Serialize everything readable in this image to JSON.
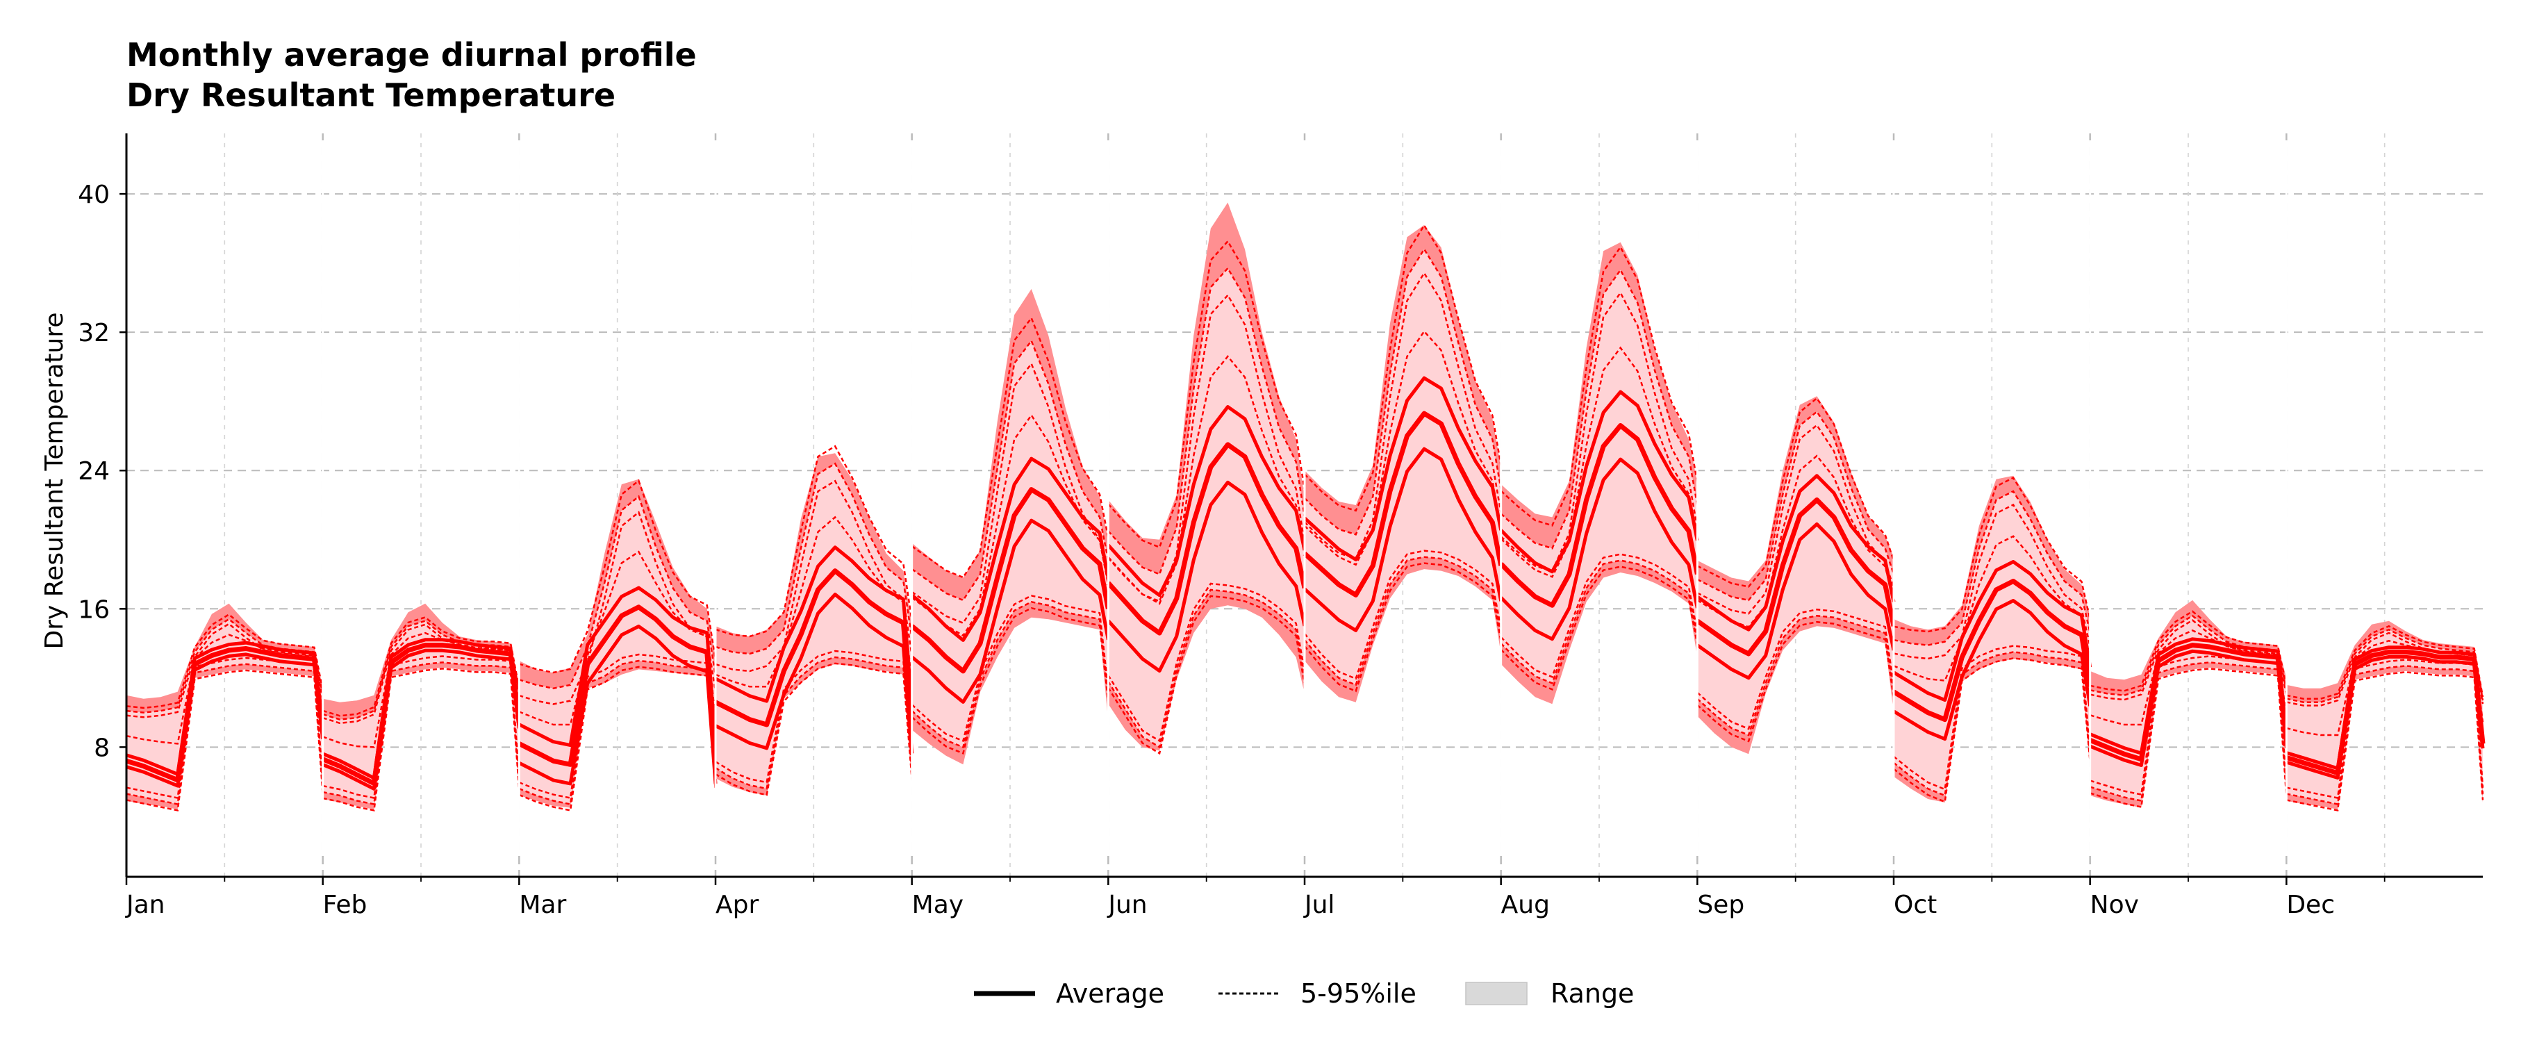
{
  "chart_data": {
    "type": "area",
    "title": "Monthly average diurnal profile",
    "subtitle": "Dry Resultant Temperature",
    "xlabel": "",
    "ylabel": "Dry Resultant Temperature",
    "x_tick_labels": [
      "Jan",
      "Feb",
      "Mar",
      "Apr",
      "May",
      "Jun",
      "Jul",
      "Aug",
      "Sep",
      "Oct",
      "Nov",
      "Dec"
    ],
    "y_ticks": [
      8,
      16,
      24,
      32,
      40
    ],
    "ylim": [
      0.5,
      43.5
    ],
    "grid": true,
    "legend_position": "bottom-center",
    "legend": [
      {
        "label": "Average",
        "style": "solid"
      },
      {
        "label": "5-95%ile",
        "style": "dashed"
      },
      {
        "label": "Range",
        "style": "fill"
      }
    ],
    "colors": {
      "series": "#ff0000",
      "range_fill": "#ff0000",
      "range_band": "#ffd3d6",
      "grid": "#bbbbbb"
    },
    "hours": [
      0,
      2,
      4,
      6,
      8,
      10,
      12,
      14,
      16,
      18,
      20,
      22,
      23
    ],
    "months": [
      {
        "month": "Jan",
        "average": [
          7.2,
          6.9,
          6.5,
          6.1,
          12.8,
          13.3,
          13.6,
          13.7,
          13.5,
          13.3,
          13.2,
          13.1,
          8.8
        ],
        "p5": [
          5.3,
          5.1,
          4.9,
          4.7,
          12.3,
          12.5,
          12.7,
          12.8,
          12.7,
          12.6,
          12.5,
          12.4,
          5.6
        ],
        "p95": [
          10.1,
          10.0,
          10.1,
          10.3,
          13.5,
          14.8,
          15.4,
          14.6,
          13.9,
          13.7,
          13.6,
          13.5,
          11.0
        ],
        "min": [
          4.9,
          4.7,
          4.6,
          4.4,
          12.0,
          12.2,
          12.4,
          12.5,
          12.4,
          12.3,
          12.2,
          12.1,
          5.0
        ],
        "max": [
          11.0,
          10.8,
          10.9,
          11.2,
          13.8,
          15.7,
          16.3,
          15.2,
          14.2,
          14.0,
          13.9,
          13.8,
          11.4
        ]
      },
      {
        "month": "Feb",
        "average": [
          7.3,
          6.9,
          6.4,
          5.9,
          12.9,
          13.6,
          13.9,
          13.9,
          13.8,
          13.6,
          13.5,
          13.4,
          9.4
        ],
        "p5": [
          5.4,
          5.2,
          4.9,
          4.7,
          12.4,
          12.6,
          12.8,
          12.9,
          12.8,
          12.7,
          12.7,
          12.6,
          5.9
        ],
        "p95": [
          9.9,
          9.6,
          9.7,
          10.1,
          13.8,
          15.0,
          15.3,
          14.5,
          14.1,
          13.9,
          13.9,
          13.8,
          11.2
        ],
        "min": [
          5.0,
          4.8,
          4.6,
          4.4,
          12.1,
          12.3,
          12.5,
          12.6,
          12.5,
          12.4,
          12.4,
          12.3,
          5.3
        ],
        "max": [
          10.8,
          10.6,
          10.7,
          11.0,
          14.2,
          15.8,
          16.3,
          15.2,
          14.4,
          14.2,
          14.1,
          14.0,
          11.6
        ]
      },
      {
        "month": "Mar",
        "average": [
          8.2,
          7.7,
          7.2,
          7.0,
          12.8,
          14.2,
          15.6,
          16.1,
          15.4,
          14.4,
          13.8,
          13.5,
          7.0
        ],
        "p5": [
          5.6,
          5.2,
          4.9,
          4.7,
          11.7,
          12.1,
          12.8,
          13.0,
          12.9,
          12.7,
          12.6,
          12.5,
          5.7
        ],
        "p95": [
          11.9,
          11.6,
          11.4,
          11.6,
          13.8,
          17.5,
          21.7,
          22.5,
          19.6,
          17.2,
          15.8,
          15.3,
          12.1
        ],
        "min": [
          5.2,
          4.9,
          4.6,
          4.5,
          11.4,
          11.7,
          12.2,
          12.5,
          12.4,
          12.3,
          12.2,
          12.1,
          5.2
        ],
        "max": [
          13.0,
          12.5,
          12.3,
          12.6,
          14.5,
          19.2,
          23.2,
          23.5,
          21.0,
          18.4,
          16.8,
          16.0,
          13.2
        ]
      },
      {
        "month": "Apr",
        "average": [
          10.6,
          10.1,
          9.6,
          9.3,
          12.4,
          14.5,
          17.1,
          18.2,
          17.4,
          16.4,
          15.7,
          15.2,
          9.0
        ],
        "p5": [
          6.8,
          6.2,
          5.8,
          5.6,
          11.0,
          12.1,
          12.9,
          13.2,
          13.1,
          12.9,
          12.7,
          12.6,
          6.5
        ],
        "p95": [
          13.8,
          13.5,
          13.4,
          13.7,
          14.8,
          19.5,
          23.8,
          24.4,
          22.6,
          20.3,
          18.4,
          17.6,
          14.3
        ],
        "min": [
          6.2,
          5.7,
          5.4,
          5.2,
          10.8,
          11.7,
          12.5,
          12.8,
          12.7,
          12.5,
          12.4,
          12.2,
          5.8
        ],
        "max": [
          15.0,
          14.6,
          14.4,
          14.8,
          15.8,
          21.2,
          24.8,
          25.0,
          23.5,
          21.3,
          19.2,
          18.2,
          15.1
        ]
      },
      {
        "month": "May",
        "average": [
          15.0,
          14.2,
          13.2,
          12.4,
          14.0,
          17.8,
          21.4,
          22.9,
          22.3,
          20.9,
          19.5,
          18.6,
          16.0
        ],
        "p5": [
          10.1,
          9.2,
          8.4,
          8.0,
          11.9,
          14.2,
          15.9,
          16.4,
          16.2,
          15.8,
          15.6,
          15.4,
          11.0
        ],
        "p95": [
          18.3,
          17.6,
          16.9,
          16.5,
          18.0,
          24.1,
          30.2,
          31.5,
          29.0,
          25.5,
          22.8,
          21.3,
          18.8
        ],
        "min": [
          9.0,
          8.2,
          7.5,
          7.0,
          11.2,
          13.2,
          14.9,
          15.5,
          15.4,
          15.2,
          15.0,
          14.8,
          9.5
        ],
        "max": [
          19.8,
          19.0,
          18.2,
          17.8,
          19.4,
          26.8,
          33.0,
          34.5,
          31.8,
          27.6,
          24.2,
          22.5,
          20.0
        ]
      },
      {
        "month": "Jun",
        "average": [
          17.5,
          16.4,
          15.3,
          14.6,
          16.6,
          21.0,
          24.2,
          25.5,
          24.8,
          22.6,
          20.8,
          19.5,
          17.2
        ],
        "p5": [
          11.8,
          10.2,
          8.6,
          8.0,
          12.5,
          15.6,
          17.1,
          17.0,
          16.8,
          16.4,
          15.7,
          14.8,
          12.0
        ],
        "p95": [
          20.5,
          19.4,
          18.4,
          18.0,
          20.7,
          28.7,
          34.6,
          35.7,
          34.0,
          30.0,
          26.5,
          24.5,
          21.3
        ],
        "min": [
          10.5,
          9.0,
          8.0,
          7.8,
          11.9,
          14.6,
          16.0,
          16.2,
          16.0,
          15.5,
          14.5,
          13.2,
          11.1
        ],
        "max": [
          22.3,
          21.1,
          20.1,
          20.0,
          22.6,
          31.8,
          38.0,
          39.5,
          36.8,
          32.0,
          28.3,
          25.8,
          22.4
        ]
      },
      {
        "month": "Jul",
        "average": [
          19.2,
          18.3,
          17.4,
          16.8,
          18.5,
          22.8,
          26.0,
          27.3,
          26.7,
          24.4,
          22.5,
          21.0,
          18.5
        ],
        "p5": [
          14.2,
          13.0,
          12.0,
          11.6,
          14.6,
          17.4,
          18.8,
          19.0,
          18.9,
          18.5,
          17.9,
          17.1,
          14.5
        ],
        "p95": [
          22.4,
          21.4,
          20.6,
          20.3,
          22.5,
          29.6,
          35.2,
          36.8,
          35.2,
          31.4,
          27.8,
          25.8,
          22.9
        ],
        "min": [
          13.0,
          11.8,
          10.9,
          10.6,
          13.9,
          16.6,
          18.0,
          18.3,
          18.2,
          17.9,
          17.3,
          16.5,
          13.4
        ],
        "max": [
          24.0,
          23.0,
          22.2,
          22.0,
          24.3,
          32.5,
          37.5,
          38.2,
          36.9,
          32.8,
          29.2,
          27.0,
          24.2
        ]
      },
      {
        "month": "Aug",
        "average": [
          18.6,
          17.6,
          16.7,
          16.2,
          18.0,
          22.3,
          25.4,
          26.6,
          25.8,
          23.6,
          21.8,
          20.5,
          18.0
        ],
        "p5": [
          14.0,
          13.0,
          12.1,
          11.7,
          14.5,
          17.2,
          18.6,
          18.8,
          18.6,
          18.2,
          17.6,
          16.9,
          14.3
        ],
        "p95": [
          21.5,
          20.6,
          19.8,
          19.5,
          21.7,
          28.6,
          34.2,
          35.6,
          33.7,
          29.8,
          26.6,
          24.8,
          22.0
        ],
        "min": [
          12.8,
          11.8,
          10.9,
          10.5,
          13.6,
          16.4,
          17.8,
          18.1,
          17.9,
          17.5,
          17.0,
          16.3,
          13.2
        ],
        "max": [
          23.2,
          22.3,
          21.5,
          21.3,
          23.4,
          31.1,
          36.7,
          37.2,
          35.3,
          31.1,
          27.9,
          25.8,
          23.3
        ]
      },
      {
        "month": "Sep",
        "average": [
          15.3,
          14.6,
          13.9,
          13.4,
          14.7,
          18.5,
          21.4,
          22.3,
          21.3,
          19.4,
          18.2,
          17.4,
          15.0
        ],
        "p5": [
          10.8,
          9.9,
          9.1,
          8.7,
          11.7,
          14.3,
          15.4,
          15.6,
          15.5,
          15.2,
          14.9,
          14.6,
          11.2
        ],
        "p95": [
          17.7,
          17.2,
          16.7,
          16.5,
          17.7,
          22.6,
          26.6,
          27.4,
          25.9,
          23.0,
          20.6,
          19.5,
          18.0
        ],
        "min": [
          9.8,
          8.8,
          8.0,
          7.6,
          11.1,
          13.6,
          14.7,
          15.0,
          14.9,
          14.6,
          14.3,
          14.0,
          10.0
        ],
        "max": [
          18.8,
          18.3,
          17.8,
          17.6,
          18.8,
          24.0,
          27.8,
          28.3,
          26.8,
          23.9,
          21.4,
          20.2,
          19.0
        ]
      },
      {
        "month": "Oct",
        "average": [
          11.2,
          10.6,
          10.0,
          9.6,
          13.2,
          15.3,
          17.1,
          17.6,
          16.9,
          15.8,
          15.0,
          14.5,
          11.5
        ],
        "p5": [
          7.1,
          6.3,
          5.6,
          5.2,
          12.2,
          12.9,
          13.3,
          13.5,
          13.4,
          13.2,
          13.1,
          12.9,
          7.5
        ],
        "p95": [
          14.2,
          14.0,
          13.9,
          14.1,
          15.2,
          19.5,
          22.3,
          22.8,
          21.2,
          19.2,
          17.6,
          16.8,
          14.6
        ],
        "min": [
          6.3,
          5.6,
          5.0,
          4.8,
          11.8,
          12.5,
          12.9,
          13.1,
          13.0,
          12.9,
          12.7,
          12.5,
          6.7
        ],
        "max": [
          15.4,
          15.0,
          14.8,
          15.0,
          16.2,
          20.8,
          23.5,
          23.7,
          22.2,
          20.0,
          18.3,
          17.4,
          15.6
        ]
      },
      {
        "month": "Nov",
        "average": [
          8.4,
          8.0,
          7.6,
          7.3,
          13.0,
          13.6,
          13.9,
          13.8,
          13.6,
          13.4,
          13.3,
          13.2,
          8.3
        ],
        "p5": [
          5.7,
          5.4,
          5.1,
          4.9,
          12.3,
          12.6,
          12.8,
          12.9,
          12.8,
          12.7,
          12.6,
          12.5,
          5.5
        ],
        "p95": [
          11.3,
          11.1,
          11.0,
          11.3,
          13.9,
          15.0,
          15.6,
          14.8,
          14.1,
          13.8,
          13.7,
          13.6,
          11.3
        ],
        "min": [
          5.2,
          4.9,
          4.7,
          4.5,
          12.0,
          12.3,
          12.5,
          12.6,
          12.5,
          12.4,
          12.3,
          12.2,
          5.0
        ],
        "max": [
          12.4,
          12.0,
          11.9,
          12.2,
          14.3,
          15.8,
          16.5,
          15.4,
          14.4,
          14.1,
          14.0,
          13.9,
          12.0
        ]
      },
      {
        "month": "Dec",
        "average": [
          7.4,
          7.1,
          6.8,
          6.5,
          12.8,
          13.3,
          13.5,
          13.5,
          13.4,
          13.2,
          13.2,
          13.1,
          8.2
        ],
        "p5": [
          5.3,
          5.1,
          4.9,
          4.7,
          12.2,
          12.4,
          12.6,
          12.7,
          12.6,
          12.5,
          12.5,
          12.4,
          5.3
        ],
        "p95": [
          10.8,
          10.6,
          10.6,
          10.9,
          13.4,
          14.4,
          14.8,
          14.3,
          13.9,
          13.7,
          13.6,
          13.5,
          10.7
        ],
        "min": [
          4.9,
          4.7,
          4.6,
          4.4,
          11.9,
          12.1,
          12.3,
          12.4,
          12.3,
          12.2,
          12.2,
          12.1,
          4.8
        ],
        "max": [
          11.6,
          11.4,
          11.4,
          11.7,
          13.9,
          15.1,
          15.3,
          14.7,
          14.2,
          14.0,
          13.9,
          13.8,
          11.2
        ]
      }
    ]
  }
}
